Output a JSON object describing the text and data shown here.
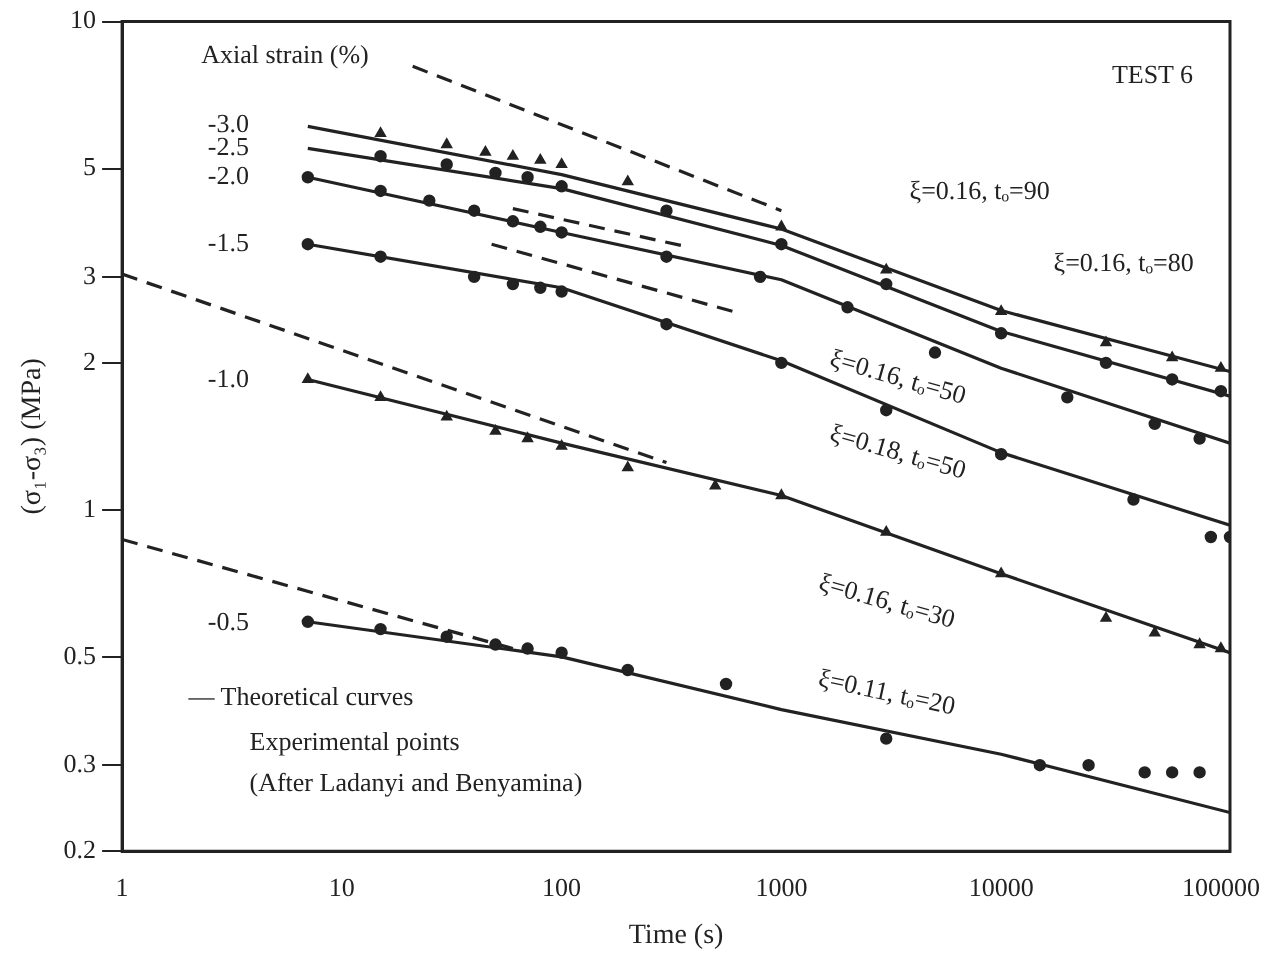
{
  "chart_data": {
    "type": "line",
    "xlabel": "Time (s)",
    "ylabel": "(σ₁-σ₃) (MPa)",
    "log": "xy",
    "grid": false,
    "legend": false,
    "xlim": [
      1,
      110000
    ],
    "xticks": [
      1,
      10,
      100,
      1000,
      10000,
      100000
    ],
    "ylim": [
      0.2,
      10
    ],
    "yticks": [
      0.2,
      0.3,
      0.5,
      1,
      2,
      3,
      5,
      10
    ],
    "series": [
      {
        "type": "line",
        "color": "#222222",
        "x": [
          7,
          100,
          1000,
          10000,
          110000
        ],
        "values": [
          6.1,
          4.86,
          3.76,
          2.56,
          1.92
        ]
      },
      {
        "type": "line",
        "color": "#222222",
        "x": [
          7,
          100,
          1000,
          10000,
          110000
        ],
        "values": [
          5.5,
          4.55,
          3.48,
          2.32,
          1.71
        ]
      },
      {
        "type": "line",
        "color": "#222222",
        "x": [
          7,
          100,
          1000,
          10000,
          110000
        ],
        "values": [
          4.8,
          3.7,
          2.96,
          1.95,
          1.37
        ]
      },
      {
        "type": "line",
        "color": "#222222",
        "x": [
          7,
          100,
          1000,
          10000,
          110000
        ],
        "values": [
          3.5,
          2.85,
          2.02,
          1.31,
          0.93
        ]
      },
      {
        "type": "line",
        "color": "#222222",
        "x": [
          7,
          100,
          1000,
          10000,
          110000
        ],
        "values": [
          1.85,
          1.37,
          1.07,
          0.74,
          0.51
        ]
      },
      {
        "type": "line",
        "color": "#222222",
        "x": [
          7,
          100,
          1000,
          10000,
          110000
        ],
        "values": [
          0.59,
          0.5,
          0.39,
          0.316,
          0.24
        ]
      },
      {
        "type": "line",
        "color": "#222222",
        "line_style": "dashed",
        "x": [
          21,
          1000
        ],
        "values": [
          8.1,
          4.1
        ]
      },
      {
        "type": "line",
        "color": "#222222",
        "line_style": "dashed",
        "x": [
          60,
          350
        ],
        "values": [
          4.14,
          3.48
        ]
      },
      {
        "type": "line",
        "color": "#222222",
        "line_style": "dashed",
        "x": [
          48,
          600
        ],
        "values": [
          3.5,
          2.55
        ]
      },
      {
        "type": "line",
        "color": "#222222",
        "line_style": "dashed",
        "x": [
          1,
          300
        ],
        "values": [
          3.04,
          1.25
        ]
      },
      {
        "type": "line",
        "color": "#222222",
        "line_style": "dashed",
        "x": [
          1,
          60
        ],
        "values": [
          0.87,
          0.52
        ]
      },
      {
        "type": "scatter",
        "color": "#222222",
        "marker": "triangle",
        "x": [
          15,
          30,
          45,
          60,
          80,
          100,
          200,
          1000,
          3000,
          10000,
          30000,
          60000,
          100000
        ],
        "values": [
          5.9,
          5.6,
          5.4,
          5.3,
          5.2,
          5.1,
          4.7,
          3.8,
          3.1,
          2.55,
          2.2,
          2.05,
          1.95
        ]
      },
      {
        "type": "scatter",
        "color": "#222222",
        "marker": "circle",
        "x": [
          15,
          30,
          50,
          70,
          100,
          300,
          1000,
          3000,
          10000,
          30000,
          60000,
          100000
        ],
        "values": [
          5.3,
          5.1,
          4.9,
          4.8,
          4.6,
          4.1,
          3.5,
          2.9,
          2.3,
          2.0,
          1.85,
          1.75
        ]
      },
      {
        "type": "scatter",
        "color": "#222222",
        "marker": "circle",
        "x": [
          7,
          15,
          25,
          40,
          60,
          80,
          100,
          300,
          800,
          2000,
          5000,
          20000,
          50000,
          80000
        ],
        "values": [
          4.8,
          4.5,
          4.3,
          4.1,
          3.9,
          3.8,
          3.7,
          3.3,
          3.0,
          2.6,
          2.1,
          1.7,
          1.5,
          1.4
        ]
      },
      {
        "type": "scatter",
        "color": "#222222",
        "marker": "circle",
        "x": [
          7,
          15,
          40,
          60,
          80,
          100,
          300,
          1000,
          3000,
          10000,
          40000,
          90000,
          110000
        ],
        "values": [
          3.5,
          3.3,
          3.0,
          2.9,
          2.85,
          2.8,
          2.4,
          2.0,
          1.6,
          1.3,
          1.05,
          0.88,
          0.88
        ]
      },
      {
        "type": "scatter",
        "color": "#222222",
        "marker": "triangle",
        "x": [
          7,
          15,
          30,
          50,
          70,
          100,
          200,
          500,
          1000,
          3000,
          10000,
          30000,
          50000,
          80000,
          100000
        ],
        "values": [
          1.85,
          1.7,
          1.55,
          1.45,
          1.4,
          1.35,
          1.22,
          1.12,
          1.07,
          0.9,
          0.74,
          0.6,
          0.56,
          0.53,
          0.52
        ]
      },
      {
        "type": "scatter",
        "color": "#222222",
        "marker": "circle",
        "x": [
          7,
          15,
          30,
          50,
          70,
          100,
          200,
          560,
          3000,
          15000,
          25000,
          45000,
          60000,
          80000
        ],
        "values": [
          0.59,
          0.57,
          0.55,
          0.53,
          0.52,
          0.51,
          0.47,
          0.44,
          0.34,
          0.3,
          0.3,
          0.29,
          0.29,
          0.29
        ]
      }
    ],
    "annotations": [
      "TEST 6",
      "— Theoretical curves",
      "Experimental points",
      "(After Ladanyi and Benyamina)",
      "Axial strain (%)",
      "-3.0",
      "-2.5",
      "-2.0",
      "-1.5",
      "-1.0",
      "-0.5",
      "ξ=0.16, tₒ=90",
      "ξ=0.16, tₒ=80",
      "ξ=0.16, tₒ=50",
      "ξ=0.18, tₒ=50",
      "ξ=0.16, tₒ=30",
      "ξ=0.11, tₒ=20"
    ]
  }
}
